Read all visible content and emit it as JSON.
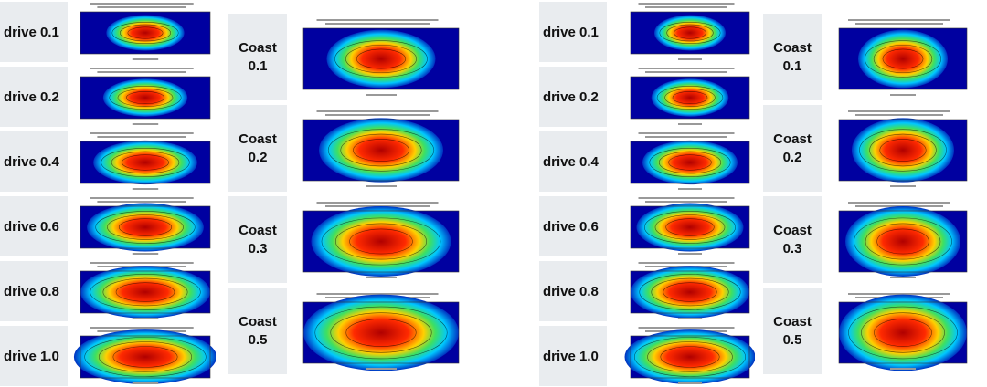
{
  "left": {
    "drive_labels": [
      "drive 0.1",
      "drive 0.2",
      "drive 0.4",
      "drive 0.6",
      "drive 0.8",
      "drive 1.0"
    ],
    "coast_labels": [
      "Coast 0.1",
      "Coast 0.2",
      "Coast 0.3",
      "Coast 0.5"
    ]
  },
  "right": {
    "drive_labels": [
      "drive 0.1",
      "drive 0.2",
      "drive 0.4",
      "drive 0.6",
      "drive 0.8",
      "drive 1.0"
    ],
    "coast_labels": [
      "Coast 0.1",
      "Coast 0.2",
      "Coast 0.3",
      "Coast 0.5"
    ]
  }
}
